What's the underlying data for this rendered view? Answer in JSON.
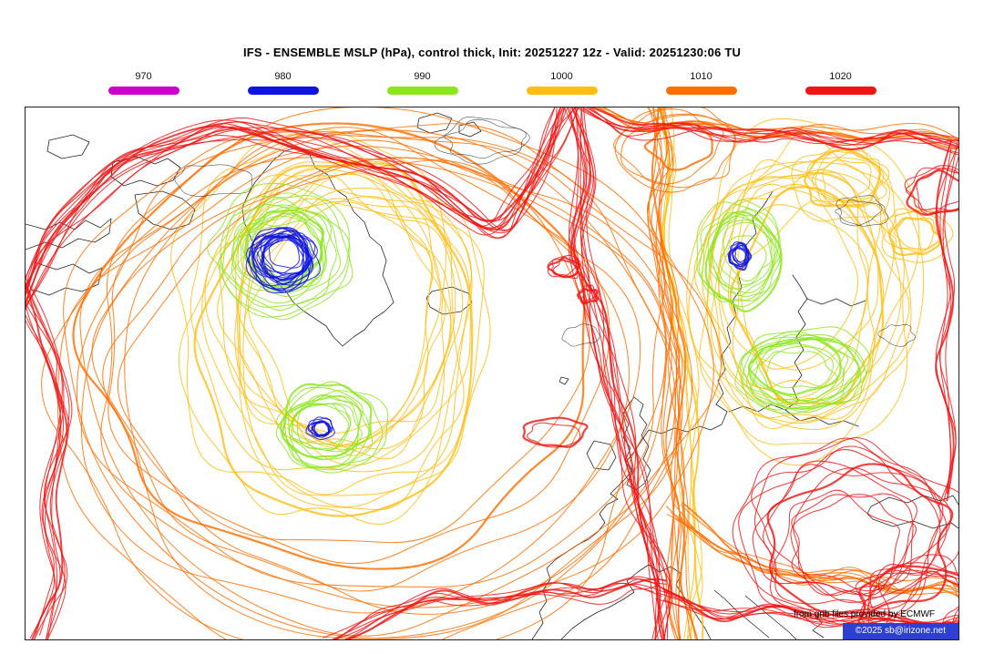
{
  "header": {
    "title": "IFS - ENSEMBLE MSLP (hPa), control thick, Init: 20251227 12z - Valid: 20251230:06 TU"
  },
  "legend": {
    "items": [
      {
        "label": "970",
        "color": "#cc00cc"
      },
      {
        "label": "980",
        "color": "#0f14e0"
      },
      {
        "label": "990",
        "color": "#8ce61e"
      },
      {
        "label": "1000",
        "color": "#ffbe14"
      },
      {
        "label": "1010",
        "color": "#ff6e00"
      },
      {
        "label": "1020",
        "color": "#f01414"
      }
    ]
  },
  "map": {
    "coastline_color": "#1a1a1a",
    "background": "#ffffff"
  },
  "attribution": {
    "source_note": "from grib files provided by ECMWF",
    "copyright": "©2025 sb@irizone.net",
    "copyright_bg": "#2e3fd4"
  }
}
